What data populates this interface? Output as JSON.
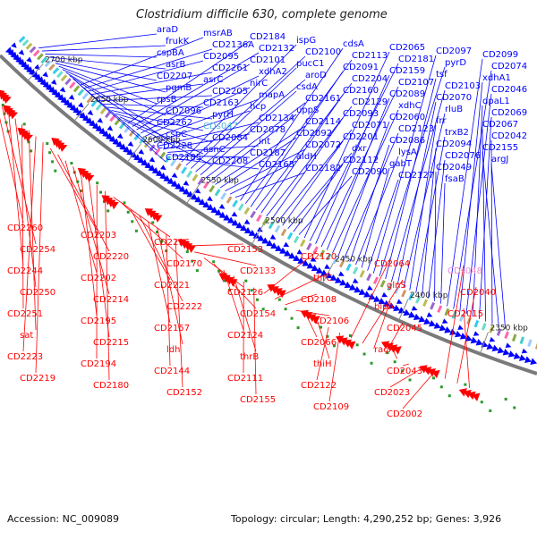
{
  "title": "Clostridium difficile 630, complete genome",
  "footer": {
    "accession": "Accession: NC_009089",
    "stats": "Topology: circular; Length: 4,290,252 bp; Genes: 3,926"
  },
  "colors": {
    "forward_genes": "#0000ff",
    "reverse_genes": "#ff0000",
    "backbone": "#7a7a7a",
    "rna_label": "#55bbdd",
    "ncrna_label": "#ee88cc",
    "gc_skew_dots": "#2a9a2a"
  },
  "scale_ticks": [
    "2700 kbp",
    "2650 kbp",
    "2600 kbp",
    "2550 kbp",
    "2500 kbp",
    "2450 kbp",
    "2400 kbp",
    "2350 kbp"
  ],
  "forward_labels": [
    "araD",
    "frukK",
    "cspBA",
    "asrB",
    "CD2207",
    "pgmB",
    "rpsB",
    "CD2096",
    "CD2262",
    "cspC",
    "CD2228",
    "CD2185",
    "msrAB",
    "CD2136A",
    "CD2095",
    "CD2261",
    "asrC",
    "CD2205",
    "CD2163",
    "pyrH",
    "CDs047",
    "CD2084",
    "asnC",
    "CD2208",
    "CD2184",
    "CD2132",
    "CD2101",
    "xdhA2",
    "nirC",
    "mapA",
    "hcp",
    "CD2134",
    "CD2078",
    "int",
    "CD2187",
    "CD2165",
    "ispG",
    "CD2100",
    "pucC1",
    "aroD",
    "csdA",
    "CD2161",
    "uppS",
    "CD2114",
    "CD2092",
    "CD2072",
    "aldH",
    "CD2182",
    "cdsA",
    "CD2113",
    "CD2091",
    "CD2204",
    "CD2160",
    "CD2129",
    "CD2093",
    "CD2071",
    "CD2201",
    "dxr",
    "CD2112",
    "CD2090",
    "CD2065",
    "CD2181",
    "CD2159",
    "CD2107",
    "CD2089",
    "xdhC",
    "CD2060",
    "CD2123",
    "CD2086",
    "lysA",
    "gabT",
    "CD2127",
    "CD2097",
    "pyrD",
    "tsf",
    "CD2103",
    "CD2070",
    "rluB",
    "frr",
    "trxB2",
    "CD2094",
    "CD2076",
    "CD2049",
    "fsaB",
    "CD2099",
    "CD2074",
    "xdhA1",
    "CD2046",
    "dpaL1",
    "CD2069",
    "CD2067",
    "CD2042",
    "CD2155",
    "argJ"
  ],
  "reverse_labels": [
    "CD2260",
    "CD2254",
    "CD2244",
    "CD2250",
    "CD2251",
    "sat",
    "CD2223",
    "CD2219",
    "CD2203",
    "CD2220",
    "CD2202",
    "CD2214",
    "CD2195",
    "CD2215",
    "CD2194",
    "CD2180",
    "CD2216",
    "CD2170",
    "CD2221",
    "CD2222",
    "CD2157",
    "ldh",
    "CD2144",
    "CD2152",
    "CD2153",
    "CD2133",
    "CD2126",
    "CD2154",
    "CD2124",
    "thrB",
    "CD2111",
    "CD2155",
    "CD2120",
    "thrC",
    "CD2108",
    "CD2106",
    "CD2066",
    "thiH",
    "CD2122",
    "CD2109",
    "CD2064",
    "glnS",
    "bipA",
    "CD2045",
    "racX",
    "CD2043",
    "CD2023",
    "CD2002",
    "CDs048",
    "CD2040",
    "CD2015"
  ]
}
